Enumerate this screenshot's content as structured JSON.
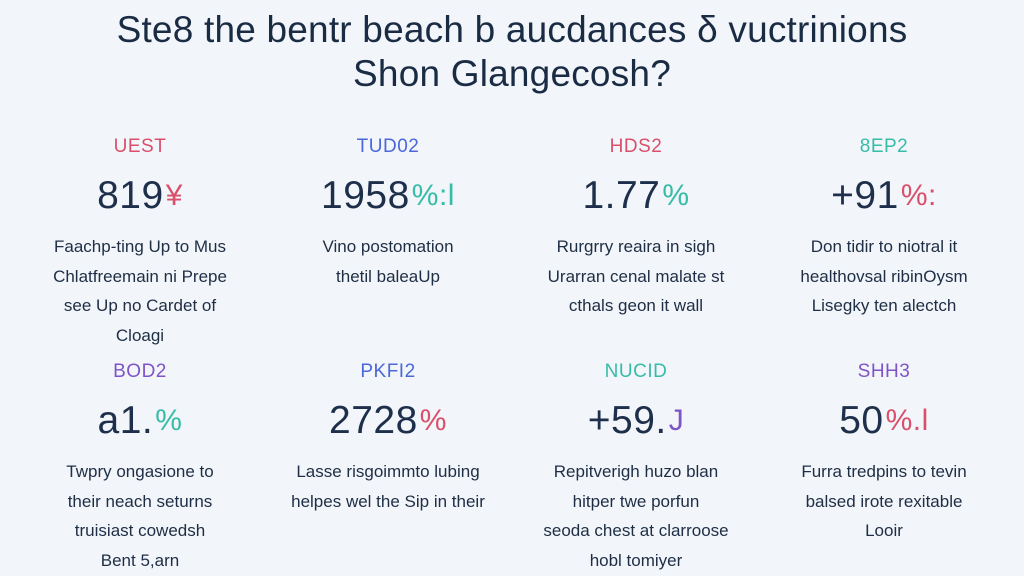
{
  "title": {
    "line1": "Ste8 the bentr beach b aucdances δ vuctrinions",
    "line2": "Shon Glangecosh?"
  },
  "colors": {
    "red": "#d9506b",
    "blue": "#4a68d8",
    "teal": "#37bca8",
    "purple": "#7f54c8",
    "navy": "#1c2d45"
  },
  "cards": [
    {
      "code": "UEST",
      "code_color": "#d9506b",
      "stat": "819",
      "stat_accent": "¥",
      "accent_color": "#d9506b",
      "desc": [
        "Faachp-ting Up to Mus",
        "Chlatfreemain ni Prepe",
        "see Up no Cardet of",
        "Cloagi"
      ]
    },
    {
      "code": "TUD02",
      "code_color": "#4a68d8",
      "stat": "1958",
      "stat_accent": "%:l",
      "accent_color": "#37bca8",
      "desc": [
        "Vino postomation",
        "thetil baleaUp"
      ]
    },
    {
      "code": "HDS2",
      "code_color": "#d9506b",
      "stat": "1.77",
      "stat_accent": "%",
      "accent_color": "#37bca8",
      "desc": [
        "Rurgrry reaira in sigh",
        "Urarran cenal malate st",
        "cthals geon it wall"
      ]
    },
    {
      "code": "8EP2",
      "code_color": "#37bca8",
      "stat": "+91",
      "stat_accent": "%:",
      "accent_color": "#d9506b",
      "desc": [
        "Don tidir to niotral it",
        "healthovsal ribinOysm",
        "Lisegky ten alectch"
      ]
    },
    {
      "code": "BOD2",
      "code_color": "#7f54c8",
      "stat": "а1.",
      "stat_accent": "%",
      "accent_color": "#37bca8",
      "desc": [
        "Twpry ongasione to",
        "their neach seturns",
        "truisiast cowedsh",
        "Bent 5,arn"
      ]
    },
    {
      "code": "PKFI2",
      "code_color": "#4a68d8",
      "stat": "2728",
      "stat_accent": "%",
      "accent_color": "#d9506b",
      "desc": [
        "Lasse risgoimmto lubing",
        "helpes wel the Sip in their"
      ]
    },
    {
      "code": "NUCID",
      "code_color": "#37bca8",
      "stat": "+59.",
      "stat_accent": "J",
      "accent_color": "#7f54c8",
      "desc": [
        "Repitverigh huzo blan",
        "hitper twe porfun",
        "seoda chest at clarroose",
        "hobl tomiyer"
      ]
    },
    {
      "code": "SHH3",
      "code_color": "#7f54c8",
      "stat": "50",
      "stat_accent": "%.l",
      "accent_color": "#d9506b",
      "desc": [
        "Furra tredpins to tevin",
        "balsed irote rexitable",
        "Looir"
      ]
    }
  ]
}
